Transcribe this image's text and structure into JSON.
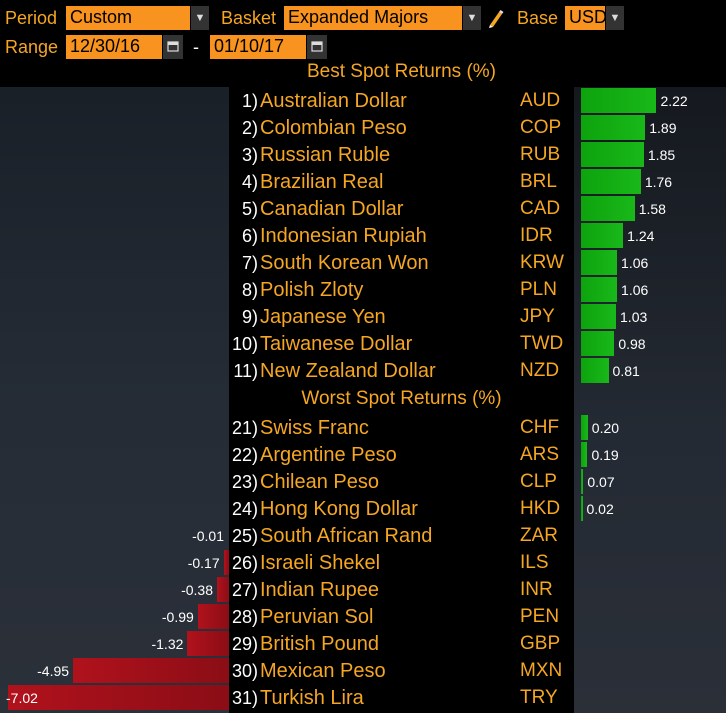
{
  "controls": {
    "period_label": "Period",
    "period_value": "Custom",
    "basket_label": "Basket",
    "basket_value": "Expanded Majors",
    "base_label": "Base",
    "base_value": "USD",
    "range_label": "Range",
    "range_start": "12/30/16",
    "range_sep": "-",
    "range_end": "01/10/17",
    "dropdown_glyph": "▼"
  },
  "colors": {
    "accent_orange": "#f7931e",
    "positive_bar": "#0da30d",
    "negative_bar": "#8b0d16"
  },
  "chart_data": {
    "type": "bar",
    "sections": [
      {
        "title": "Best Spot Returns (%)",
        "rows": [
          {
            "rank": "1)",
            "name": "Australian Dollar",
            "code": "AUD",
            "value": 2.22,
            "label": "2.22"
          },
          {
            "rank": "2)",
            "name": "Colombian Peso",
            "code": "COP",
            "value": 1.89,
            "label": "1.89"
          },
          {
            "rank": "3)",
            "name": "Russian Ruble",
            "code": "RUB",
            "value": 1.85,
            "label": "1.85"
          },
          {
            "rank": "4)",
            "name": "Brazilian Real",
            "code": "BRL",
            "value": 1.76,
            "label": "1.76"
          },
          {
            "rank": "5)",
            "name": "Canadian Dollar",
            "code": "CAD",
            "value": 1.58,
            "label": "1.58"
          },
          {
            "rank": "6)",
            "name": "Indonesian Rupiah",
            "code": "IDR",
            "value": 1.24,
            "label": "1.24"
          },
          {
            "rank": "7)",
            "name": "South Korean Won",
            "code": "KRW",
            "value": 1.06,
            "label": "1.06"
          },
          {
            "rank": "8)",
            "name": "Polish Zloty",
            "code": "PLN",
            "value": 1.06,
            "label": "1.06"
          },
          {
            "rank": "9)",
            "name": "Japanese Yen",
            "code": "JPY",
            "value": 1.03,
            "label": "1.03"
          },
          {
            "rank": "10)",
            "name": "Taiwanese Dollar",
            "code": "TWD",
            "value": 0.98,
            "label": "0.98"
          },
          {
            "rank": "11)",
            "name": "New Zealand Dollar",
            "code": "NZD",
            "value": 0.81,
            "label": "0.81"
          }
        ]
      },
      {
        "title": "Worst Spot Returns (%)",
        "rows": [
          {
            "rank": "21)",
            "name": "Swiss Franc",
            "code": "CHF",
            "value": 0.2,
            "label": "0.20"
          },
          {
            "rank": "22)",
            "name": "Argentine Peso",
            "code": "ARS",
            "value": 0.19,
            "label": "0.19"
          },
          {
            "rank": "23)",
            "name": "Chilean Peso",
            "code": "CLP",
            "value": 0.07,
            "label": "0.07"
          },
          {
            "rank": "24)",
            "name": "Hong Kong Dollar",
            "code": "HKD",
            "value": 0.02,
            "label": "0.02"
          },
          {
            "rank": "25)",
            "name": "South African Rand",
            "code": "ZAR",
            "value": -0.01,
            "label": "-0.01"
          },
          {
            "rank": "26)",
            "name": "Israeli Shekel",
            "code": "ILS",
            "value": -0.17,
            "label": "-0.17"
          },
          {
            "rank": "27)",
            "name": "Indian Rupee",
            "code": "INR",
            "value": -0.38,
            "label": "-0.38"
          },
          {
            "rank": "28)",
            "name": "Peruvian Sol",
            "code": "PEN",
            "value": -0.99,
            "label": "-0.99"
          },
          {
            "rank": "29)",
            "name": "British Pound",
            "code": "GBP",
            "value": -1.32,
            "label": "-1.32"
          },
          {
            "rank": "30)",
            "name": "Mexican Peso",
            "code": "MXN",
            "value": -4.95,
            "label": "-4.95"
          },
          {
            "rank": "31)",
            "name": "Turkish Lira",
            "code": "TRY",
            "value": -7.02,
            "label": "-7.02"
          }
        ]
      }
    ]
  }
}
